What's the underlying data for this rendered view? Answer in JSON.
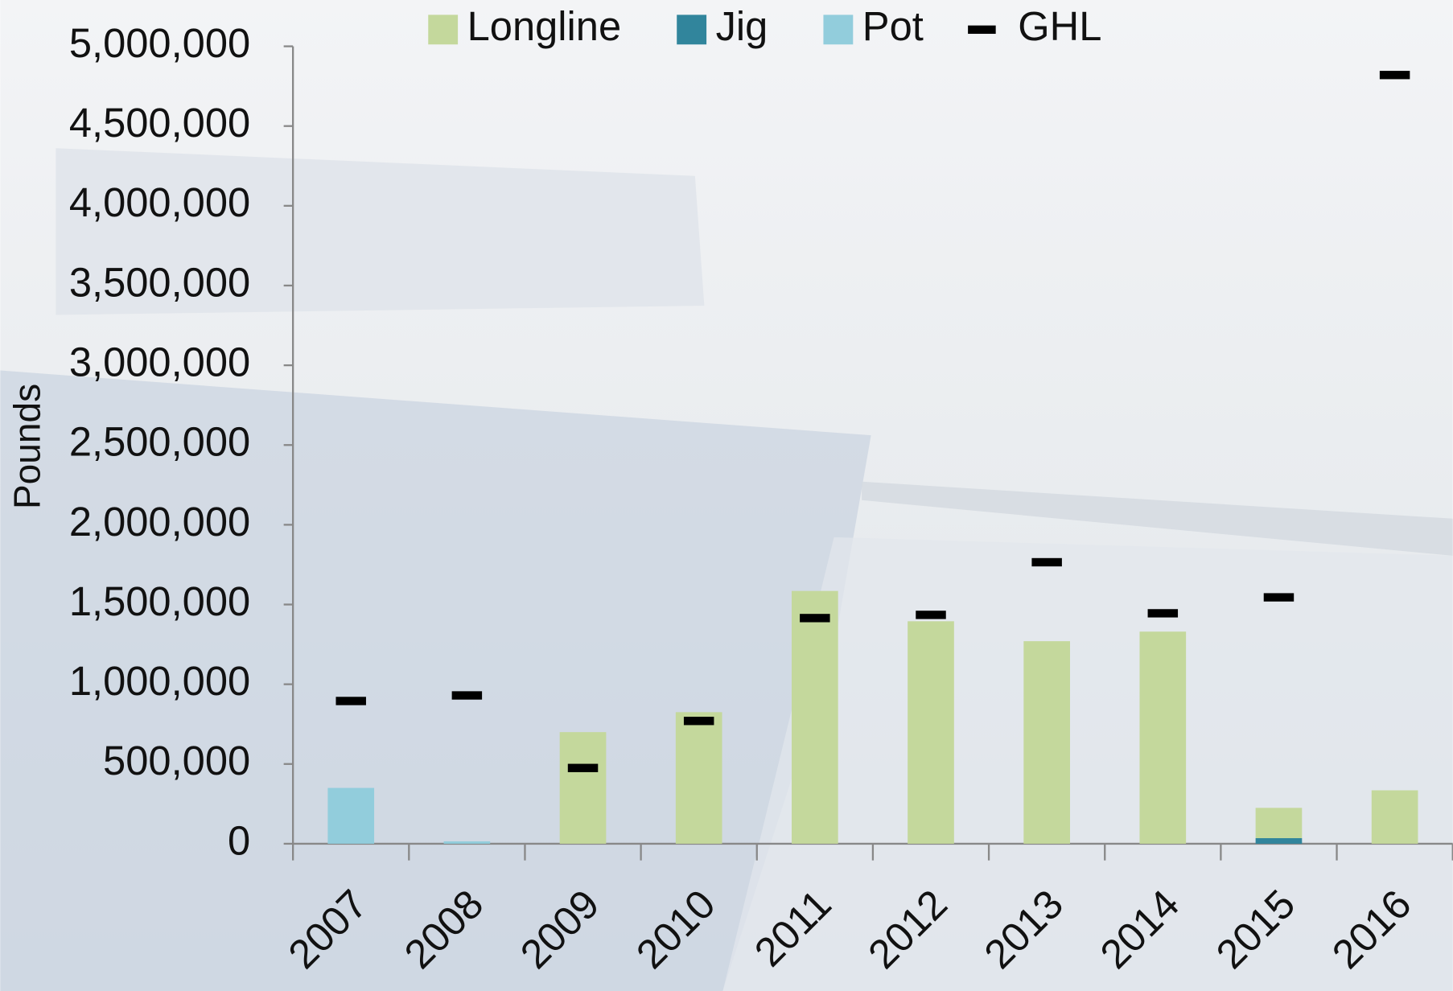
{
  "chart_data": {
    "type": "bar",
    "stacked": true,
    "y_label": "Pounds",
    "categories": [
      "2007",
      "2008",
      "2009",
      "2010",
      "2011",
      "2012",
      "2013",
      "2014",
      "2015",
      "2016"
    ],
    "series": [
      {
        "name": "Longline",
        "color": "#c4d89c",
        "values": [
          0,
          0,
          700000,
          825000,
          1585000,
          1395000,
          1270000,
          1330000,
          190000,
          335000
        ]
      },
      {
        "name": "Jig",
        "color": "#31859c",
        "values": [
          0,
          0,
          0,
          0,
          0,
          0,
          0,
          0,
          35000,
          0
        ]
      },
      {
        "name": "Pot",
        "color": "#92cddc",
        "values": [
          350000,
          15000,
          0,
          0,
          0,
          0,
          0,
          0,
          0,
          0
        ]
      },
      {
        "name": "GHL",
        "color": "#000000",
        "marker": "dash",
        "values": [
          895000,
          930000,
          475000,
          770000,
          1415000,
          1435000,
          1765000,
          1445000,
          1545000,
          4820000
        ]
      }
    ],
    "stack_order": [
      "Jig",
      "Pot",
      "Longline"
    ],
    "ylim": [
      0,
      5000000
    ],
    "yticks": [
      0,
      {
        "value": 500000,
        "label": "500,000"
      },
      {
        "value": 1000000,
        "label": "1,000,000"
      },
      {
        "value": 1500000,
        "label": "1,500,000"
      },
      {
        "value": 2000000,
        "label": "2,000,000"
      },
      {
        "value": 2500000,
        "label": "2,500,000"
      },
      {
        "value": 3000000,
        "label": "3,000,000"
      },
      {
        "value": 3500000,
        "label": "3,500,000"
      },
      {
        "value": 4000000,
        "label": "4,000,000"
      },
      {
        "value": 4500000,
        "label": "4,500,000"
      },
      {
        "value": 5000000,
        "label": "5,000,000"
      }
    ],
    "grid": false,
    "legend": "top"
  }
}
